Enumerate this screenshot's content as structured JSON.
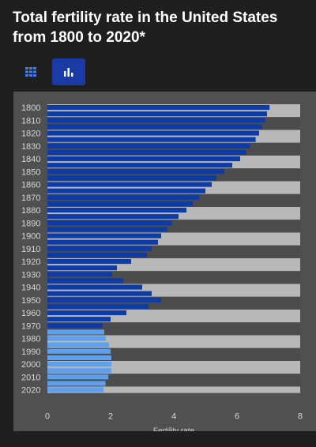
{
  "header": {
    "title": "Total fertility rate in the United States from 1800 to 2020*"
  },
  "toolbar": {
    "table_icon": "grid-table-icon",
    "chart_icon": "bar-chart-icon",
    "active": "chart",
    "active_color": "#1a3aa6"
  },
  "chart_data": {
    "type": "bar",
    "orientation": "horizontal",
    "xlabel": "Fertility rate",
    "xlim": [
      0,
      8
    ],
    "xticks": [
      0,
      2,
      4,
      6,
      8
    ],
    "grid": true,
    "categories": [
      "1800",
      "1805",
      "1810",
      "1815",
      "1820",
      "1825",
      "1830",
      "1835",
      "1840",
      "1845",
      "1850",
      "1855",
      "1860",
      "1865",
      "1870",
      "1875",
      "1880",
      "1885",
      "1890",
      "1895",
      "1900",
      "1905",
      "1910",
      "1915",
      "1920",
      "1925",
      "1930",
      "1935",
      "1940",
      "1945",
      "1950",
      "1955",
      "1960",
      "1965",
      "1970",
      "1975",
      "1980",
      "1985",
      "1990",
      "1995",
      "2000",
      "2005",
      "2010",
      "2015",
      "2020"
    ],
    "category_labels": [
      "1800",
      "1810",
      "1820",
      "1830",
      "1840",
      "1850",
      "1860",
      "1870",
      "1880",
      "1890",
      "1900",
      "1910",
      "1920",
      "1930",
      "1940",
      "1950",
      "1960",
      "1970",
      "1980",
      "1990",
      "2000",
      "2010",
      "2020"
    ],
    "values": [
      7.03,
      6.95,
      6.89,
      6.79,
      6.7,
      6.59,
      6.41,
      6.3,
      6.1,
      5.85,
      5.6,
      5.35,
      5.2,
      5,
      4.81,
      4.6,
      4.4,
      4.15,
      3.95,
      3.8,
      3.6,
      3.5,
      3.3,
      3.15,
      2.65,
      2.2,
      2.05,
      2.4,
      3.0,
      3.3,
      3.6,
      3.2,
      2.5,
      2,
      1.75,
      1.8,
      1.85,
      1.95,
      2.0,
      2.02,
      2.03,
      2.02,
      1.93,
      1.84,
      1.78
    ],
    "bar_colors": {
      "dark": "#0d3ba8",
      "light": "#5da0f0"
    },
    "light_from_index": 35,
    "band_colors": [
      "#b8b8b8",
      "#4c4c4c"
    ]
  }
}
